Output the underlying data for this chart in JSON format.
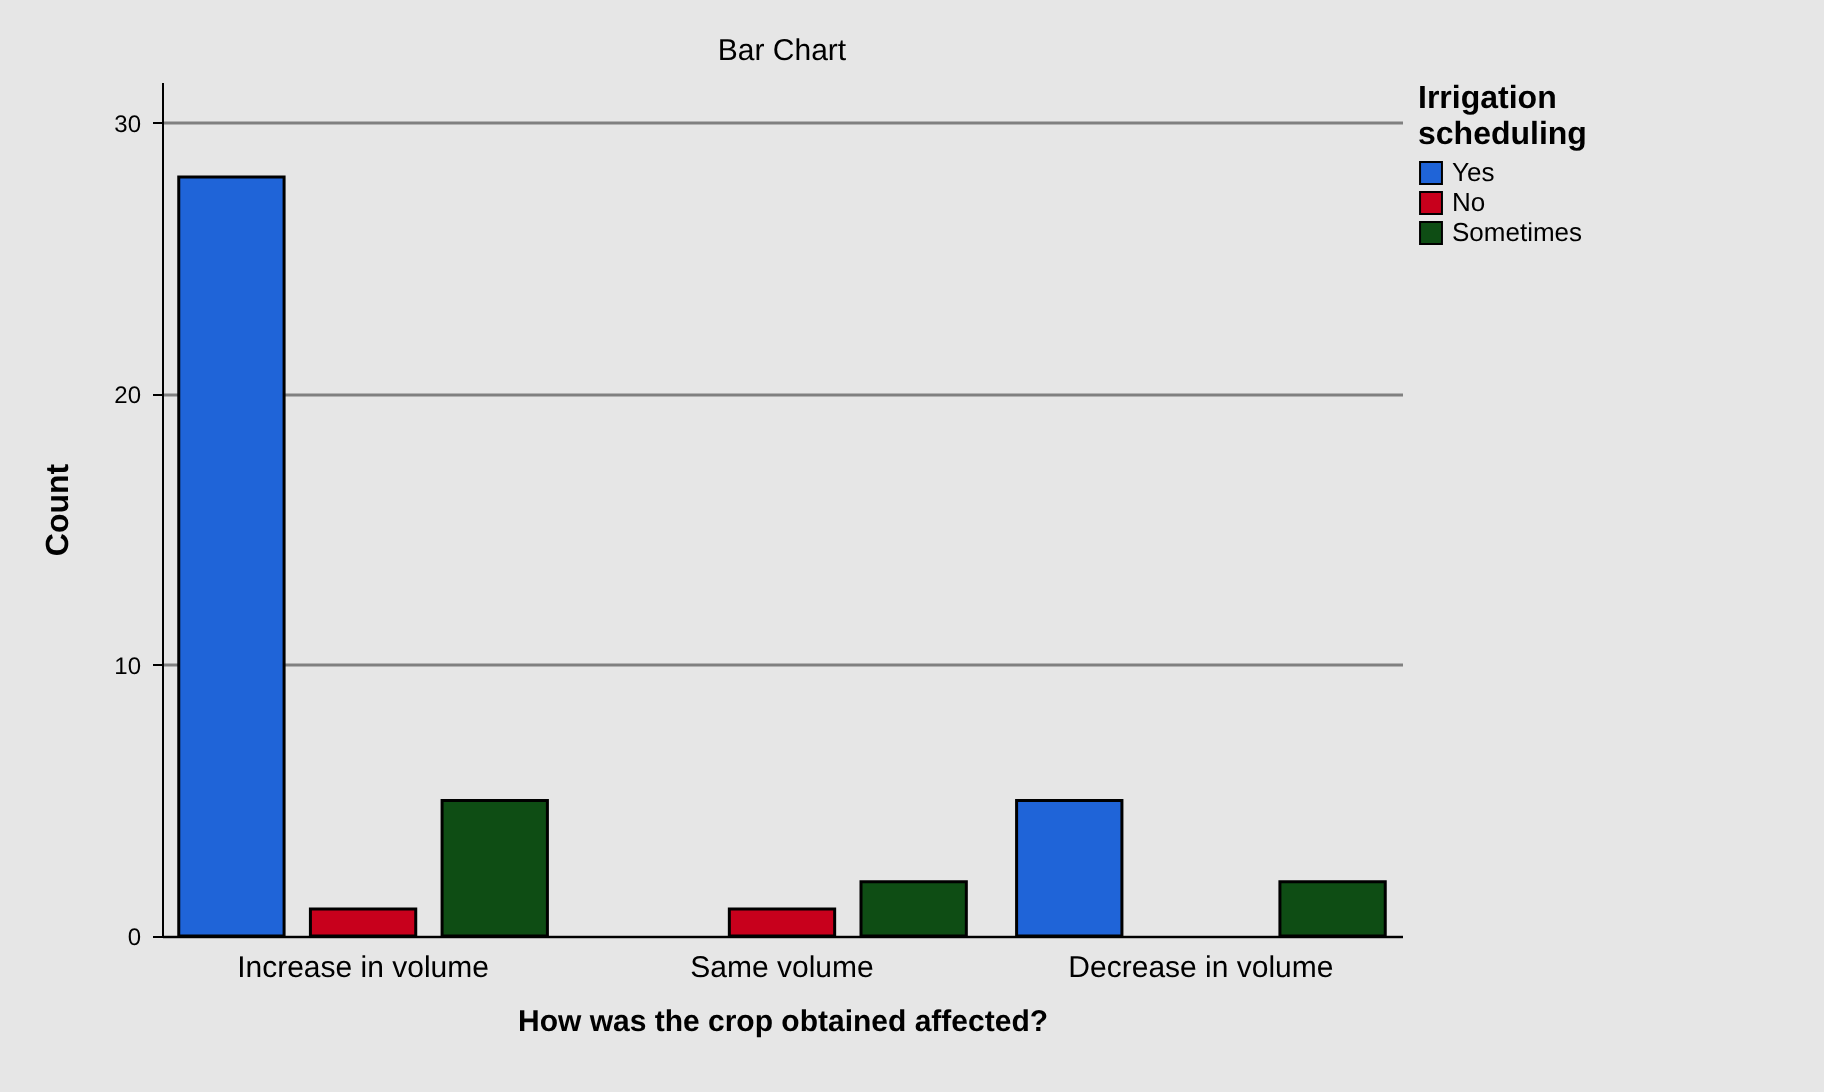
{
  "chart_data": {
    "type": "bar",
    "title": "Bar Chart",
    "xlabel": "How was the crop obtained affected?",
    "ylabel": "Count",
    "legend_title": "Irrigation scheduling",
    "categories": [
      "Increase in volume",
      "Same volume",
      "Decrease in volume"
    ],
    "series": [
      {
        "name": "Yes",
        "color": "#1f64d8",
        "values": [
          28,
          null,
          5
        ]
      },
      {
        "name": "No",
        "color": "#c8001c",
        "values": [
          1,
          1,
          null
        ]
      },
      {
        "name": "Sometimes",
        "color": "#0e4d14",
        "values": [
          5,
          2,
          2
        ]
      }
    ],
    "ylim": [
      0,
      31.5
    ],
    "yticks": [
      0,
      10,
      20,
      30
    ],
    "grid": "y",
    "legend": "top right"
  }
}
